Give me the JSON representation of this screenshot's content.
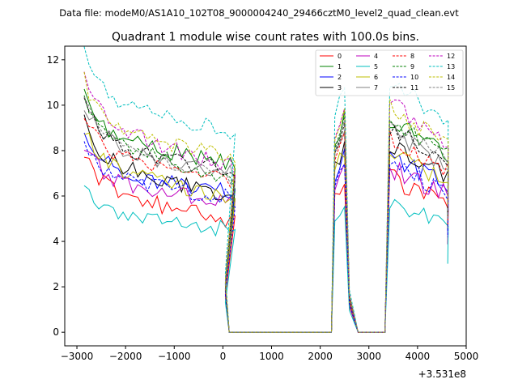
{
  "chart_data": {
    "type": "line",
    "suptitle": "Data file: modeM0/AS1A10_102T08_9000004240_29466cztM0_level2_quad_clean.evt",
    "title": "Quadrant 1 module wise count rates with 100.0s bins.",
    "xlabel": "",
    "ylabel": "",
    "x_offset_label": "+3.531e8",
    "xlim": [
      -3250,
      5000
    ],
    "ylim": [
      -0.6,
      12.6
    ],
    "x_ticks": [
      -3000,
      -2000,
      -1000,
      0,
      1000,
      2000,
      3000,
      4000,
      5000
    ],
    "x_tick_labels": [
      "−3000",
      "−2000",
      "−1000",
      "0",
      "1000",
      "2000",
      "3000",
      "4000",
      "5000"
    ],
    "y_ticks": [
      0,
      2,
      4,
      6,
      8,
      10,
      12
    ],
    "y_tick_labels": [
      "0",
      "2",
      "4",
      "6",
      "8",
      "10",
      "12"
    ],
    "legend_position": "top-right",
    "series": [
      {
        "name": "0",
        "color": "#ff0000",
        "dash": "solid",
        "level": 6.3
      },
      {
        "name": "1",
        "color": "#008000",
        "dash": "solid",
        "level": 8.7
      },
      {
        "name": "2",
        "color": "#0000ff",
        "dash": "solid",
        "level": 7.2
      },
      {
        "name": "3",
        "color": "#000000",
        "dash": "solid",
        "level": 7.6
      },
      {
        "name": "4",
        "color": "#bf00bf",
        "dash": "solid",
        "level": 6.7
      },
      {
        "name": "5",
        "color": "#00bfbf",
        "dash": "solid",
        "level": 5.3
      },
      {
        "name": "6",
        "color": "#bfbf00",
        "dash": "solid",
        "level": 7.4
      },
      {
        "name": "7",
        "color": "#808080",
        "dash": "solid",
        "level": 8.2
      },
      {
        "name": "8",
        "color": "#ff0000",
        "dash": "dashed",
        "level": 7.9
      },
      {
        "name": "9",
        "color": "#008000",
        "dash": "dashed",
        "level": 8.6
      },
      {
        "name": "10",
        "color": "#0000ff",
        "dash": "dashed",
        "level": 6.9
      },
      {
        "name": "11",
        "color": "#000000",
        "dash": "dashed",
        "level": 8.3
      },
      {
        "name": "12",
        "color": "#bf00bf",
        "dash": "dashed",
        "level": 9.3
      },
      {
        "name": "13",
        "color": "#00bfbf",
        "dash": "dashed",
        "level": 10.3
      },
      {
        "name": "14",
        "color": "#bfbf00",
        "dash": "dashed",
        "level": 9.1
      },
      {
        "name": "15",
        "color": "#808080",
        "dash": "dashed",
        "level": 8.5
      }
    ]
  }
}
